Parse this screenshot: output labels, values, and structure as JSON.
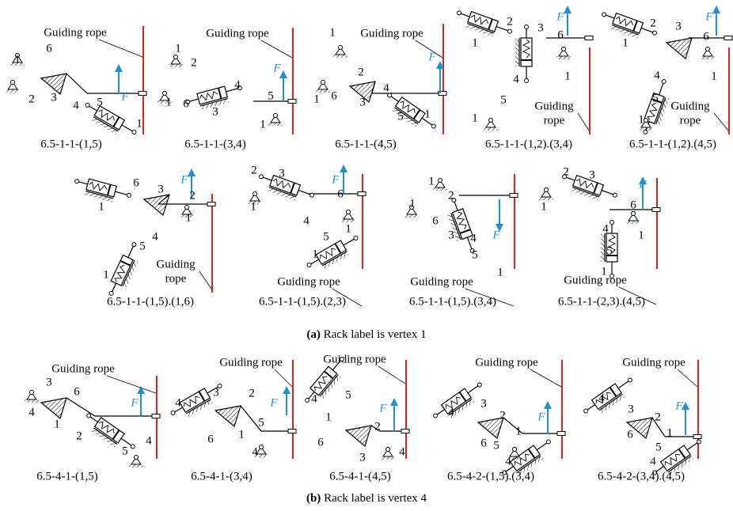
{
  "panels": [
    {
      "caption": "6.5-1-1-(1,5)",
      "rope_label": [
        "Guiding rope"
      ],
      "force": "F",
      "nodes": [
        "6",
        "1",
        "3",
        "2",
        "4",
        "5",
        "1"
      ]
    },
    {
      "caption": "6.5-1-1-(3,4)",
      "rope_label": [
        "Guiding rope"
      ],
      "force": "F",
      "nodes": [
        "1",
        "2",
        "4",
        "3",
        "6",
        "1",
        "5",
        "1"
      ]
    },
    {
      "caption": "6.5-1-1-(4,5)",
      "rope_label": [
        "Guiding rope"
      ],
      "force": "F",
      "nodes": [
        "1",
        "2",
        "1",
        "6",
        "3",
        "4",
        "5",
        "1"
      ]
    },
    {
      "caption": "6.5-1-1-(1,2).(3,4)",
      "rope_label": [
        "Guiding",
        "rope"
      ],
      "force": "F",
      "nodes": [
        "2",
        "3",
        "6",
        "1",
        "4",
        "1",
        "5",
        "1"
      ]
    },
    {
      "caption": "6.5-1-1-(1,2).(4,5)",
      "rope_label": [
        "Guiding",
        "rope"
      ],
      "force": "F",
      "nodes": [
        "2",
        "3",
        "6",
        "1",
        "4",
        "1",
        "5",
        "1"
      ]
    },
    {
      "caption": "6.5-1-1-(1,5).(1,6)",
      "rope_label": [
        "Guiding",
        "rope"
      ],
      "force": "F",
      "nodes": [
        "6",
        "3",
        "2",
        "1",
        "1",
        "4",
        "5",
        "1"
      ]
    },
    {
      "caption": "6.5-1-1-(1,5).(2,3)",
      "rope_label": [
        "Guiding rope"
      ],
      "force": "F",
      "nodes": [
        "2",
        "3",
        "1",
        "6",
        "1",
        "4",
        "5",
        "1"
      ]
    },
    {
      "caption": "6.5-1-1-(1,5).(3,4)",
      "rope_label": [
        "Guiding rope"
      ],
      "force": "F",
      "nodes": [
        "1",
        "2",
        "1",
        "6",
        "3",
        "4",
        "5",
        "1"
      ]
    },
    {
      "caption": "6.5-1-1-(2,3).(4,5)",
      "rope_label": [
        "Guiding rope"
      ],
      "force": "F",
      "nodes": [
        "2",
        "3",
        "1",
        "6",
        "4",
        "1",
        "5",
        "1"
      ]
    },
    {
      "caption": "6.5-4-1-(1,5)",
      "rope_label": [
        "Guiding rope"
      ],
      "force": "F",
      "nodes": [
        "3",
        "6",
        "4",
        "1",
        "2",
        "4",
        "5"
      ]
    },
    {
      "caption": "6.5-4-1-(3,4)",
      "rope_label": [
        "Guiding rope"
      ],
      "force": "F",
      "nodes": [
        "4",
        "3",
        "2",
        "6",
        "1",
        "5",
        "4"
      ]
    },
    {
      "caption": "6.5-4-1-(4,5)",
      "rope_label": [
        "Guiding rope"
      ],
      "force": "F",
      "nodes": [
        "4",
        "5",
        "1",
        "2",
        "6",
        "3",
        "4"
      ]
    },
    {
      "caption": "6.5-4-2-(1,5).(3,4)",
      "rope_label": [
        "Guiding rope"
      ],
      "force": "F",
      "nodes": [
        "4",
        "3",
        "2",
        "6",
        "1",
        "5",
        "4"
      ]
    },
    {
      "caption": "6.5-4-2-(3,4).(4,5)",
      "rope_label": [
        "Guiding rope"
      ],
      "force": "F",
      "nodes": [
        "4",
        "3",
        "2",
        "1",
        "6",
        "5",
        "4"
      ]
    }
  ],
  "subcaptions": [
    {
      "label": "(a)",
      "text": "Rack label is vertex 1"
    },
    {
      "label": "(b)",
      "text": "Rack label is vertex 4"
    }
  ]
}
